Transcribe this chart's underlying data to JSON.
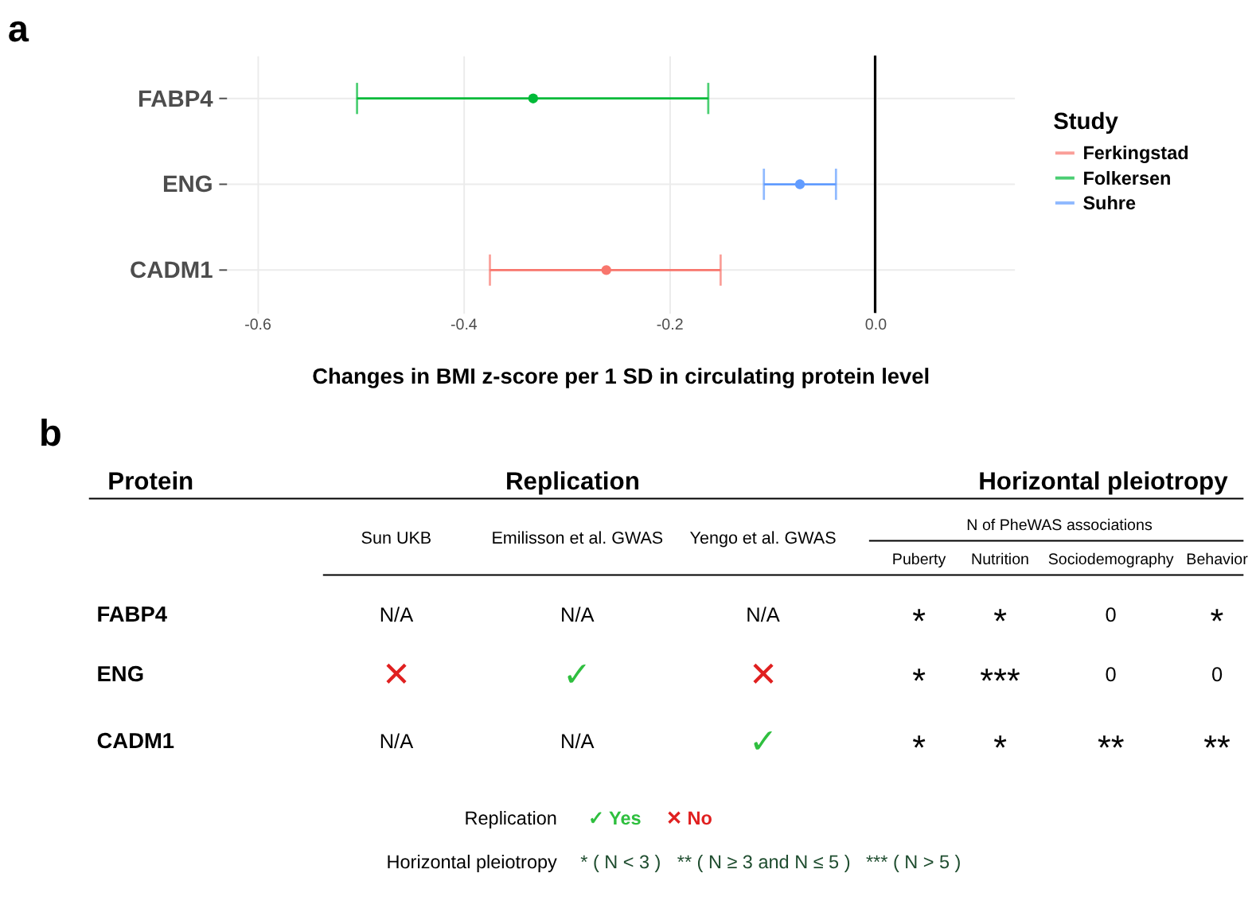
{
  "chart_data": [
    {
      "type": "scatter",
      "title": "a",
      "orientation": "horizontal",
      "categories": [
        "FABP4",
        "ENG",
        "CADM1"
      ],
      "xlabel": "Changes in BMI z-score per 1 SD in circulating protein level",
      "legend_title": "Study",
      "legend": "right",
      "grid": true,
      "marker": "circle",
      "xlim": [
        -0.63,
        0.135
      ],
      "xticks": [
        -0.6,
        -0.4,
        -0.2,
        {
          "value": 0,
          "label": "0.0"
        }
      ],
      "ref_lines": [
        {
          "axis": "x",
          "value": 0,
          "color": "#000000"
        }
      ],
      "series": [
        {
          "name": "Ferkingstad",
          "color": "#f8766d",
          "values": [
            null,
            null,
            -0.261
          ],
          "errors": [
            null,
            null,
            [
              -0.374,
              -0.15
            ]
          ]
        },
        {
          "name": "Folkersen",
          "color": "#00ba38",
          "values": [
            -0.332,
            null,
            null
          ],
          "errors": [
            [
              -0.503,
              -0.162
            ],
            null,
            null
          ]
        },
        {
          "name": "Suhre",
          "color": "#619cff",
          "values": [
            null,
            -0.073,
            null
          ],
          "errors": [
            null,
            [
              -0.108,
              -0.038
            ],
            null
          ]
        }
      ]
    },
    {
      "type": "other",
      "title": "b",
      "ylabel": "Protein",
      "categories": [
        "Sun UKB",
        "Emilisson et al. GWAS",
        "Yengo et al. GWAS",
        "Puberty",
        "Nutrition",
        "Sociodemography",
        "Behavior"
      ],
      "y_categories": [
        "FABP4",
        "ENG",
        "CADM1"
      ],
      "cell_labels": [
        [
          "N/A",
          "N/A",
          "N/A",
          "*",
          "*",
          "0",
          "*"
        ],
        [
          "✕",
          "✓",
          "✕",
          "*",
          "***",
          "0",
          "0"
        ],
        [
          "N/A",
          "N/A",
          "✓",
          "*",
          "*",
          "**",
          "**"
        ]
      ],
      "colors": [
        [
          null,
          null,
          null,
          null,
          null,
          null,
          null
        ],
        [
          "#e02020",
          "#2fbf3f",
          "#e02020",
          null,
          null,
          null,
          null
        ],
        [
          null,
          null,
          "#2fbf3f",
          null,
          null,
          null,
          null
        ]
      ],
      "annotations": [
        "Replication",
        "Horizontal pleiotropy",
        "N of PheWAS associations",
        "Replication",
        "✓ Yes",
        "✕ No",
        "Horizontal pleiotropy",
        "* ( N < 3 )",
        "** ( N ≥ 3 and N ≤ 5 )",
        "*** ( N > 5 )"
      ]
    }
  ]
}
